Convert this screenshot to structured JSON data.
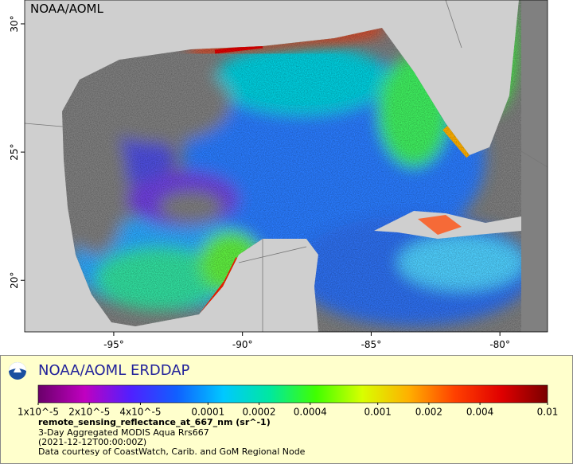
{
  "map": {
    "watermark": "NOAA/AOML",
    "xlim": [
      -98.46,
      -78.15
    ],
    "ylim": [
      17.99,
      30.93
    ],
    "xticks": [
      {
        "value": -95,
        "label": "-95°"
      },
      {
        "value": -90,
        "label": "-90°"
      },
      {
        "value": -85,
        "label": "-85°"
      },
      {
        "value": -80,
        "label": "-80°"
      }
    ],
    "yticks": [
      {
        "value": 20,
        "label": "20°"
      },
      {
        "value": 25,
        "label": "25°"
      },
      {
        "value": 30,
        "label": "30°"
      }
    ]
  },
  "legend": {
    "title": "NOAA/AOML ERDDAP",
    "colorbar": {
      "log_scale": true,
      "lim": [
        1e-05,
        0.01
      ],
      "colors": [
        "#6a006a",
        "#c000c0",
        "#5020ff",
        "#1060ff",
        "#00c8ff",
        "#00e8a0",
        "#40ff00",
        "#d8ff00",
        "#ffb000",
        "#ff4000",
        "#e00000",
        "#7a0000"
      ],
      "ticks": [
        {
          "value": 1e-05,
          "label": "1x10^-5"
        },
        {
          "value": 2e-05,
          "label": "2x10^-5"
        },
        {
          "value": 4e-05,
          "label": "4x10^-5"
        },
        0.0001,
        0.0002,
        0.0004,
        0.001,
        0.002,
        0.004,
        0.01
      ]
    },
    "variable": "remote_sensing_reflectance_at_667_nm (sr^-1)",
    "lines": [
      "3-Day Aggregated MODIS Aqua Rrs667",
      "(2021-12-12T00:00:00Z)",
      "Data courtesy of CoastWatch, Carib. and GoM Regional Node"
    ]
  }
}
